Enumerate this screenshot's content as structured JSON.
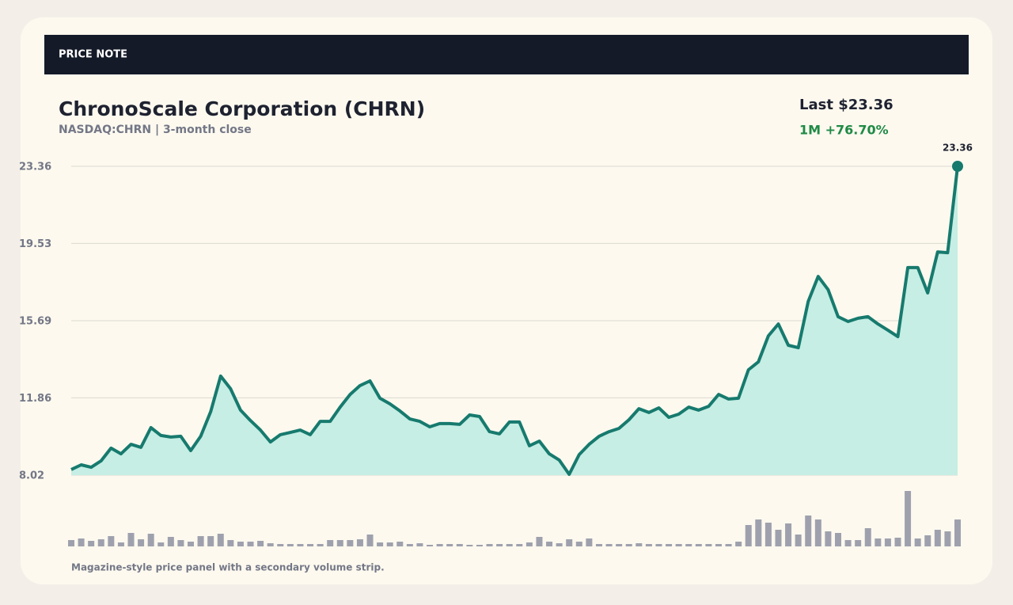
{
  "header": "PRICE NOTE",
  "chart_data": {
    "type": "area",
    "title": "ChronoScale Corporation (CHRN)",
    "subtitle": "NASDAQ:CHRN | 3-month close",
    "last_label": "Last $23.36",
    "change_label": "1M +76.70%",
    "footnote": "Magazine-style price panel with a secondary volume strip.",
    "ylim": [
      8.02,
      23.36
    ],
    "yticks": [
      8.02,
      11.86,
      15.69,
      19.53,
      23.36
    ],
    "grid": true,
    "series": [
      {
        "color": "#177a6e",
        "fill": "#c6eee4",
        "values": [
          8.3,
          8.53,
          8.41,
          8.73,
          9.36,
          9.08,
          9.55,
          9.4,
          10.38,
          9.99,
          9.91,
          9.95,
          9.24,
          9.95,
          11.17,
          12.94,
          12.31,
          11.25,
          10.73,
          10.26,
          9.67,
          10.03,
          10.14,
          10.26,
          10.03,
          10.69,
          10.69,
          11.4,
          12.03,
          12.47,
          12.7,
          11.84,
          11.56,
          11.21,
          10.81,
          10.69,
          10.42,
          10.58,
          10.58,
          10.54,
          11.01,
          10.93,
          10.18,
          10.07,
          10.66,
          10.66,
          9.48,
          9.71,
          9.08,
          8.77,
          8.06,
          9.04,
          9.55,
          9.95,
          10.18,
          10.34,
          10.77,
          11.32,
          11.13,
          11.36,
          10.89,
          11.05,
          11.4,
          11.25,
          11.44,
          12.03,
          11.8,
          11.84,
          13.25,
          13.65,
          14.94,
          15.53,
          14.47,
          14.35,
          16.64,
          17.89,
          17.23,
          15.89,
          15.65,
          15.81,
          15.89,
          15.53,
          15.22,
          14.9,
          18.33,
          18.33,
          17.07,
          19.11,
          19.07,
          23.36
        ]
      }
    ],
    "volume": {
      "color": "#9ea1ad",
      "values": [
        8,
        10,
        7,
        9,
        13,
        5,
        17,
        9,
        16,
        5,
        12,
        8,
        6,
        13,
        13,
        16,
        8,
        6,
        6,
        7,
        4,
        3,
        3,
        3,
        3,
        3,
        8,
        8,
        8,
        9,
        15,
        5,
        5,
        6,
        3,
        4,
        2,
        3,
        3,
        3,
        2,
        2,
        3,
        3,
        3,
        3,
        5,
        12,
        6,
        4,
        9,
        6,
        10,
        3,
        3,
        3,
        3,
        4,
        3,
        3,
        3,
        3,
        3,
        3,
        3,
        3,
        3,
        6,
        27,
        34,
        30,
        21,
        29,
        15,
        39,
        34,
        19,
        17,
        8,
        8,
        23,
        10,
        10,
        11,
        70,
        10,
        14,
        21,
        19,
        34
      ]
    }
  }
}
